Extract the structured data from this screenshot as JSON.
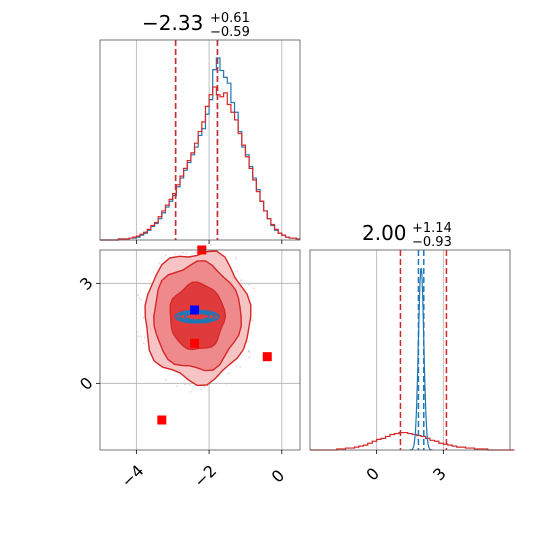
{
  "chart_data": {
    "type": "corner",
    "parameters": [
      "x",
      "y"
    ],
    "titles": [
      {
        "value": "−2.33",
        "upper": "+0.61",
        "lower": "−0.59"
      },
      {
        "value": "2.00",
        "upper": "+1.14",
        "lower": "−0.93"
      }
    ],
    "x_range": [
      -5.0,
      0.5
    ],
    "y_range": [
      -2.0,
      4.0
    ],
    "y_marginal_range": [
      -3.0,
      6.0
    ],
    "x_ticks": [
      -4,
      -2,
      0
    ],
    "x_tick_labels": [
      "−4",
      "−2",
      "0"
    ],
    "y_ticks": [
      0,
      3
    ],
    "y_tick_labels": [
      "0",
      "3"
    ],
    "y_marginal_ticks": [
      0,
      3
    ],
    "y_marginal_tick_labels": [
      "0",
      "3"
    ],
    "grid": true,
    "series": [
      {
        "color": "#1f77b4",
        "x_hist": {
          "bin_start": -5.0,
          "bin_width": 0.1,
          "counts": [
            0,
            0,
            0,
            0,
            0,
            1,
            1,
            1,
            2,
            2,
            3,
            5,
            7,
            10,
            14,
            17,
            22,
            28,
            34,
            40,
            46,
            55,
            64,
            72,
            80,
            88,
            96,
            108,
            115,
            130,
            145,
            176,
            188,
            175,
            168,
            162,
            142,
            132,
            112,
            96,
            88,
            76,
            64,
            52,
            40,
            30,
            22,
            15,
            10,
            7,
            5,
            3,
            2,
            2,
            1
          ]
        },
        "y_hist": {
          "center": 2.0,
          "peak": 188,
          "width_sigma": 0.12
        },
        "quantiles_x": [
          -2.92,
          -1.77
        ],
        "quantiles_y": [
          1.88,
          2.12
        ],
        "contour_center": [
          -2.33,
          2.0
        ],
        "contour_radii_x": [
          1.6,
          1.3,
          0.9
        ],
        "contour_radii_y": [
          0.12,
          0.08,
          0.05
        ]
      },
      {
        "color": "#d62728",
        "x_hist": {
          "bin_start": -5.0,
          "bin_width": 0.1,
          "counts": [
            0,
            0,
            0,
            0,
            0,
            1,
            1,
            1,
            2,
            3,
            4,
            6,
            8,
            11,
            15,
            18,
            24,
            30,
            36,
            42,
            48,
            57,
            66,
            74,
            82,
            90,
            100,
            112,
            122,
            138,
            150,
            158,
            150,
            148,
            152,
            140,
            132,
            124,
            110,
            98,
            86,
            74,
            62,
            50,
            40,
            30,
            22,
            16,
            11,
            7,
            5,
            3,
            2,
            2,
            1
          ]
        },
        "y_hist": {
          "bin_start": -3.0,
          "bin_width": 0.2,
          "counts": [
            0,
            0,
            0,
            0,
            0,
            0,
            1,
            1,
            2,
            2,
            3,
            4,
            5,
            7,
            9,
            11,
            12,
            14,
            16,
            17,
            18,
            18,
            17,
            16,
            15,
            14,
            12,
            10,
            9,
            7,
            6,
            5,
            4,
            3,
            3,
            2,
            2,
            1,
            1,
            1,
            0,
            0,
            0,
            0,
            0,
            0
          ]
        },
        "quantiles_x": [
          -2.92,
          -1.77
        ],
        "quantiles_y": [
          1.07,
          3.14
        ],
        "contour_center": [
          -2.33,
          2.0
        ],
        "contour_levels": [
          "39%",
          "86%",
          "99%"
        ]
      }
    ],
    "markers": [
      {
        "x": -2.2,
        "y": 4.0,
        "color": "#ff0000"
      },
      {
        "x": -2.4,
        "y": 1.2,
        "color": "#ff0000"
      },
      {
        "x": -3.3,
        "y": -1.1,
        "color": "#ff0000"
      },
      {
        "x": -0.4,
        "y": 0.8,
        "color": "#ff0000"
      },
      {
        "x": -2.4,
        "y": 2.2,
        "color": "#0000ff"
      }
    ]
  }
}
